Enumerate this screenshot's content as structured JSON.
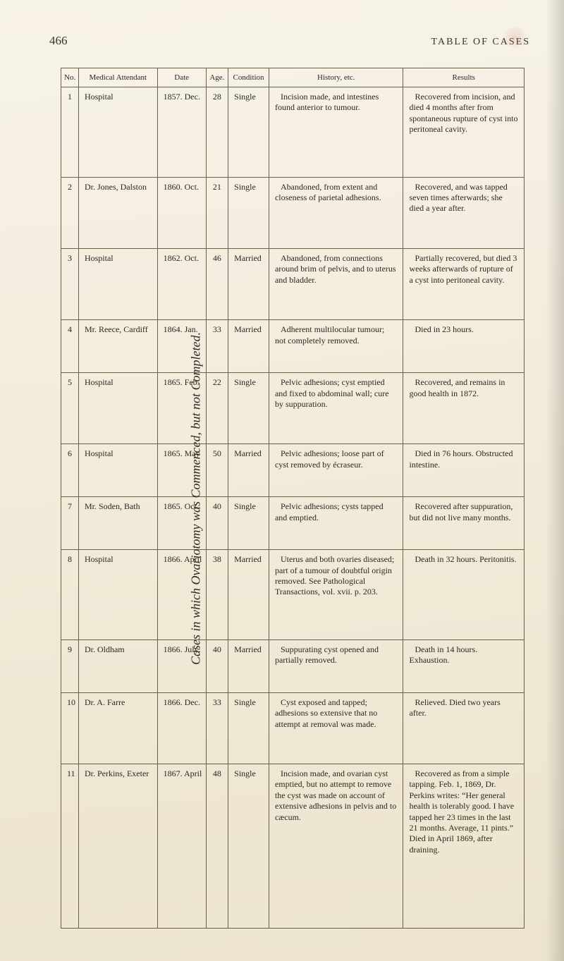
{
  "page": {
    "number": "466",
    "running_head": "TABLE OF CASES",
    "side_title": "Cases in which Ovariotomy was Commenced, but not Completed."
  },
  "columns": {
    "no": "No.",
    "attendant": "Medical Attendant",
    "date": "Date",
    "age": "Age.",
    "condition": "Condition",
    "history": "History, etc.",
    "results": "Results"
  },
  "rows": [
    {
      "no": "1",
      "attendant": "Hospital",
      "date": "1857. Dec.",
      "age": "28",
      "condition": "Single",
      "history": "Incision made, and intestines found anterior to tumour.",
      "results": "Recovered from incision, and died 4 months after from spontaneous rupture of cyst into peritoneal cavity."
    },
    {
      "no": "2",
      "attendant": "Dr. Jones, Dalston",
      "date": "1860. Oct.",
      "age": "21",
      "condition": "Single",
      "history": "Abandoned, from extent and closeness of parietal adhesions.",
      "results": "Recovered, and was tapped seven times afterwards; she died a year after."
    },
    {
      "no": "3",
      "attendant": "Hospital",
      "date": "1862. Oct.",
      "age": "46",
      "condition": "Married",
      "history": "Abandoned, from connections around brim of pelvis, and to uterus and bladder.",
      "results": "Partially recovered, but died 3 weeks afterwards of rupture of a cyst into peritoneal cavity."
    },
    {
      "no": "4",
      "attendant": "Mr. Reece, Cardiff",
      "date": "1864. Jan.",
      "age": "33",
      "condition": "Married",
      "history": "Adherent multilocular tumour; not completely removed.",
      "results": "Died in 23 hours."
    },
    {
      "no": "5",
      "attendant": "Hospital",
      "date": "1865. Feb.",
      "age": "22",
      "condition": "Single",
      "history": "Pelvic adhesions; cyst emptied and fixed to abdominal wall; cure by suppuration.",
      "results": "Recovered, and remains in good health in 1872."
    },
    {
      "no": "6",
      "attendant": "Hospital",
      "date": "1865. May",
      "age": "50",
      "condition": "Married",
      "history": "Pelvic adhesions; loose part of cyst removed by écraseur.",
      "results": "Died in 76 hours. Obstructed intestine."
    },
    {
      "no": "7",
      "attendant": "Mr. Soden, Bath",
      "date": "1865. Oct.",
      "age": "40",
      "condition": "Single",
      "history": "Pelvic adhesions; cysts tapped and emptied.",
      "results": "Recovered after suppuration, but did not live many months."
    },
    {
      "no": "8",
      "attendant": "Hospital",
      "date": "1866. April",
      "age": "38",
      "condition": "Married",
      "history": "Uterus and both ovaries diseased; part of a tumour of doubtful origin removed. See Pathological Transactions, vol. xvii. p. 203.",
      "results": "Death in 32 hours. Peritonitis."
    },
    {
      "no": "9",
      "attendant": "Dr. Oldham",
      "date": "1866. July",
      "age": "40",
      "condition": "Married",
      "history": "Suppurating cyst opened and partially removed.",
      "results": "Death in 14 hours. Exhaustion."
    },
    {
      "no": "10",
      "attendant": "Dr. A. Farre",
      "date": "1866. Dec.",
      "age": "33",
      "condition": "Single",
      "history": "Cyst exposed and tapped; adhesions so extensive that no attempt at removal was made.",
      "results": "Relieved. Died two years after."
    },
    {
      "no": "11",
      "attendant": "Dr. Perkins, Exeter",
      "date": "1867. April",
      "age": "48",
      "condition": "Single",
      "history": "Incision made, and ovarian cyst emptied, but no attempt to remove the cyst was made on account of extensive adhesions in pelvis and to cæcum.",
      "results": "Recovered as from a simple tapping. Feb. 1, 1869, Dr. Perkins writes: “Her general health is tolerably good. I have tapped her 23 times in the last 21 months. Average, 11 pints.” Died in April 1869, after draining."
    }
  ]
}
